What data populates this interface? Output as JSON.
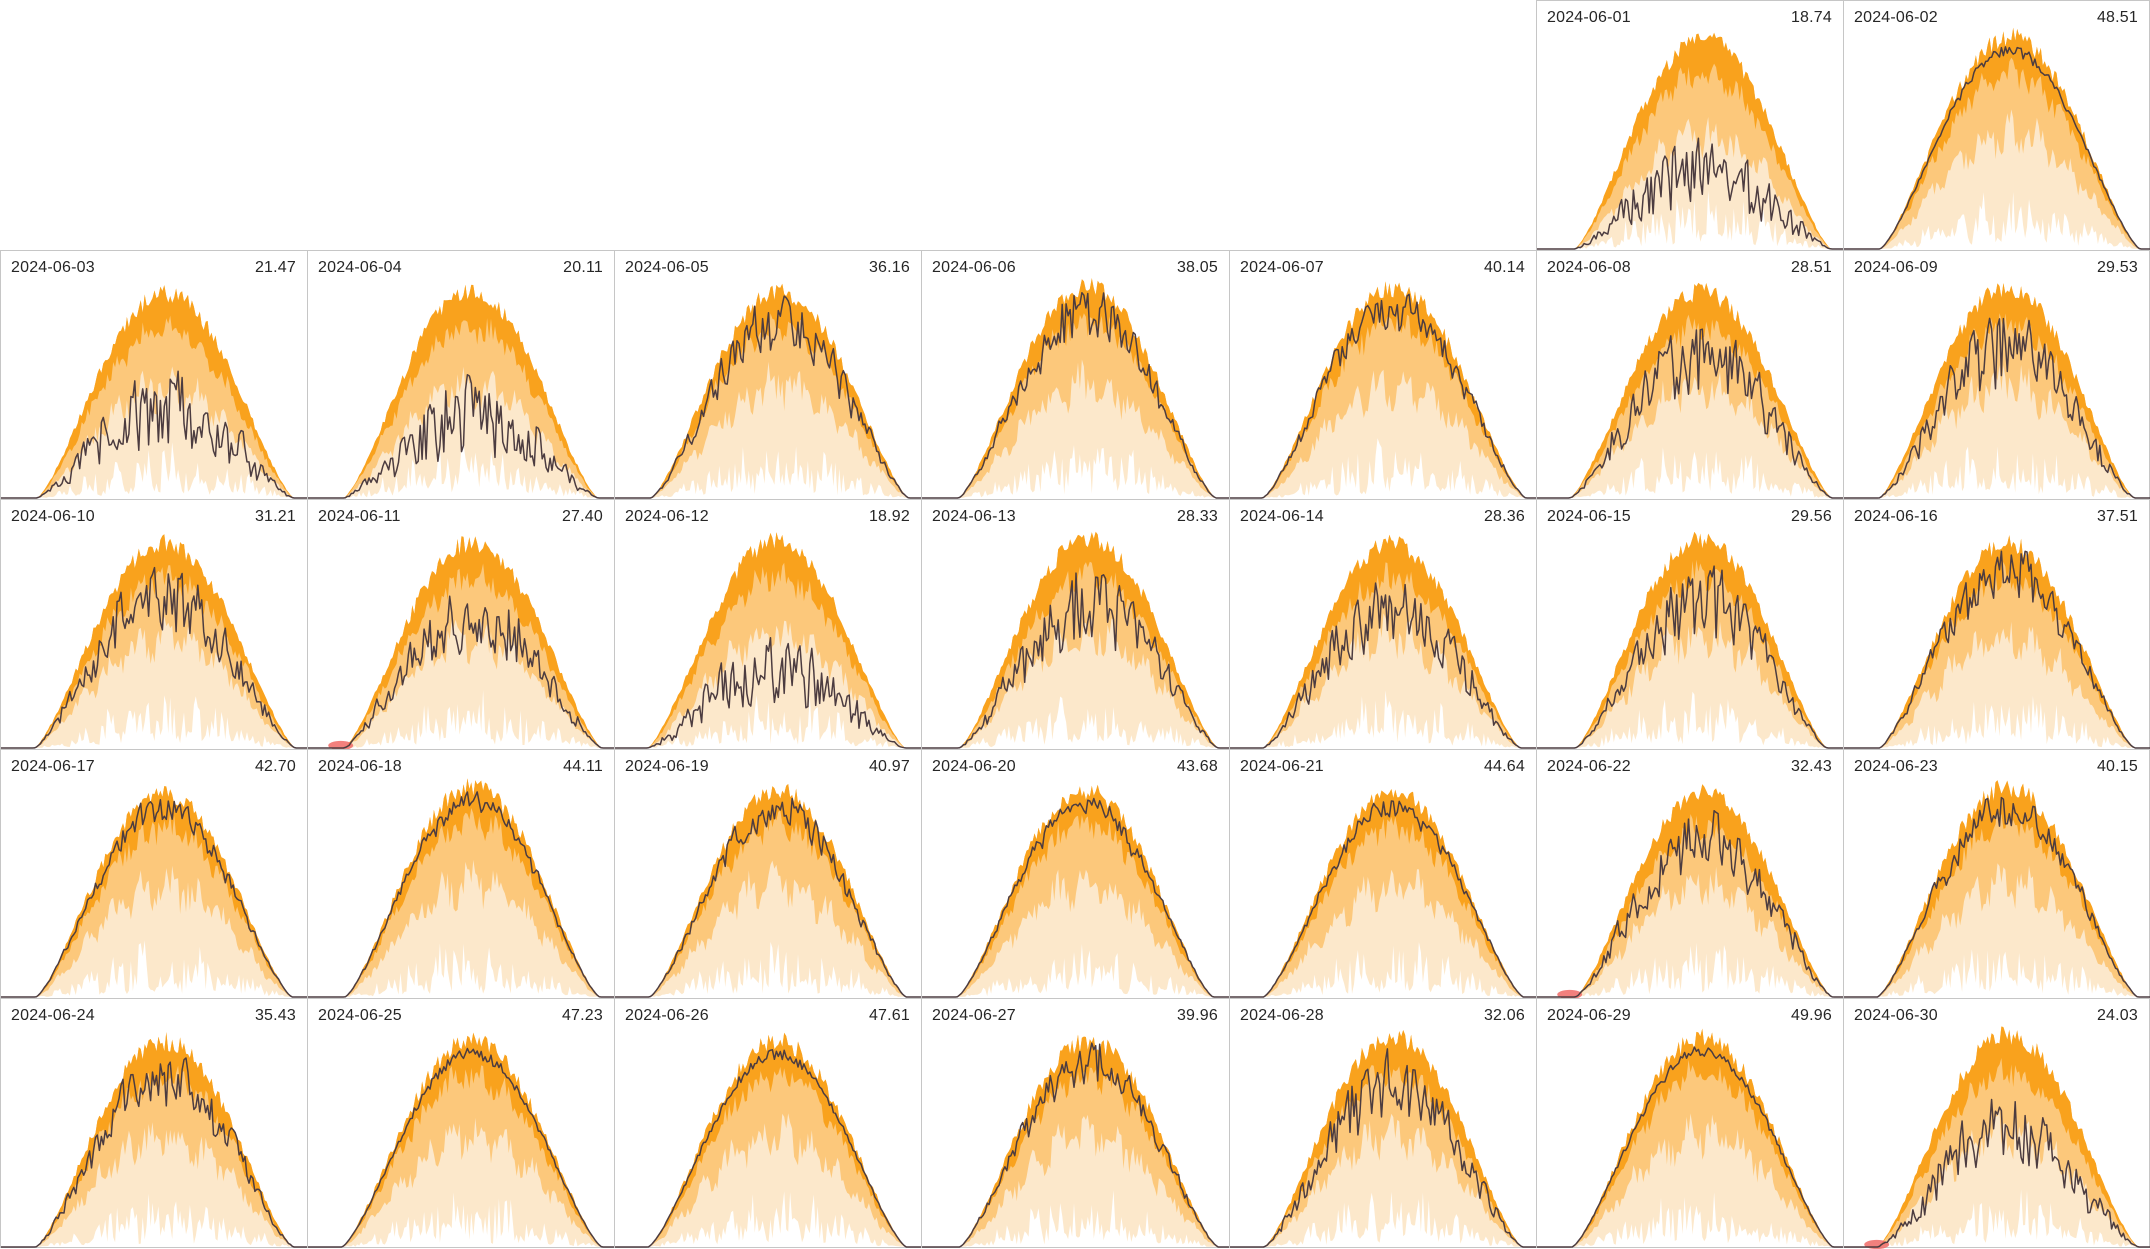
{
  "app": {
    "background_color": "#ffffff",
    "grid_border_color": "#c6c6c6",
    "text_color": "#262626"
  },
  "chart_data": {
    "type": "area",
    "description": "Calendar grid of daily small-multiple charts. Each day shows layered orange envelope bands (expected/percentile range of production over the day) with a dark line for the measured value and a numeric daily total in the header. Some days have a small red marker at the morning foot of the curve.",
    "layout": {
      "columns": 7,
      "rows": 5,
      "first_cell_column_index": 5,
      "grid_on": false,
      "legend": "none",
      "x_axis": "time of day (unlabeled)",
      "y_axis": "power (unlabeled)"
    },
    "bands": [
      {
        "name": "outer-band",
        "color": "#F9A21D"
      },
      {
        "name": "middle-band",
        "color": "#FCC87B"
      },
      {
        "name": "inner-band",
        "color": "#FCE8CB"
      }
    ],
    "line_color": "#4C3C40",
    "marker_color": "#F06A66",
    "days": [
      {
        "date": "2024-06-01",
        "value": 18.74,
        "display": "18.74",
        "marker": false
      },
      {
        "date": "2024-06-02",
        "value": 48.51,
        "display": "48.51",
        "marker": false
      },
      {
        "date": "2024-06-03",
        "value": 21.47,
        "display": "21.47",
        "marker": false
      },
      {
        "date": "2024-06-04",
        "value": 20.11,
        "display": "20.11",
        "marker": false
      },
      {
        "date": "2024-06-05",
        "value": 36.16,
        "display": "36.16",
        "marker": false
      },
      {
        "date": "2024-06-06",
        "value": 38.05,
        "display": "38.05",
        "marker": false
      },
      {
        "date": "2024-06-07",
        "value": 40.14,
        "display": "40.14",
        "marker": false
      },
      {
        "date": "2024-06-08",
        "value": 28.51,
        "display": "28.51",
        "marker": false
      },
      {
        "date": "2024-06-09",
        "value": 29.53,
        "display": "29.53",
        "marker": false
      },
      {
        "date": "2024-06-10",
        "value": 31.21,
        "display": "31.21",
        "marker": false
      },
      {
        "date": "2024-06-11",
        "value": 27.4,
        "display": "27.40",
        "marker": true
      },
      {
        "date": "2024-06-12",
        "value": 18.92,
        "display": "18.92",
        "marker": false
      },
      {
        "date": "2024-06-13",
        "value": 28.33,
        "display": "28.33",
        "marker": false
      },
      {
        "date": "2024-06-14",
        "value": 28.36,
        "display": "28.36",
        "marker": false
      },
      {
        "date": "2024-06-15",
        "value": 29.56,
        "display": "29.56",
        "marker": false
      },
      {
        "date": "2024-06-16",
        "value": 37.51,
        "display": "37.51",
        "marker": false
      },
      {
        "date": "2024-06-17",
        "value": 42.7,
        "display": "42.70",
        "marker": false
      },
      {
        "date": "2024-06-18",
        "value": 44.11,
        "display": "44.11",
        "marker": false
      },
      {
        "date": "2024-06-19",
        "value": 40.97,
        "display": "40.97",
        "marker": false
      },
      {
        "date": "2024-06-20",
        "value": 43.68,
        "display": "43.68",
        "marker": false
      },
      {
        "date": "2024-06-21",
        "value": 44.64,
        "display": "44.64",
        "marker": false
      },
      {
        "date": "2024-06-22",
        "value": 32.43,
        "display": "32.43",
        "marker": true
      },
      {
        "date": "2024-06-23",
        "value": 40.15,
        "display": "40.15",
        "marker": false
      },
      {
        "date": "2024-06-24",
        "value": 35.43,
        "display": "35.43",
        "marker": false
      },
      {
        "date": "2024-06-25",
        "value": 47.23,
        "display": "47.23",
        "marker": false
      },
      {
        "date": "2024-06-26",
        "value": 47.61,
        "display": "47.61",
        "marker": false
      },
      {
        "date": "2024-06-27",
        "value": 39.96,
        "display": "39.96",
        "marker": false
      },
      {
        "date": "2024-06-28",
        "value": 32.06,
        "display": "32.06",
        "marker": false
      },
      {
        "date": "2024-06-29",
        "value": 49.96,
        "display": "49.96",
        "marker": false
      },
      {
        "date": "2024-06-30",
        "value": 24.03,
        "display": "24.03",
        "marker": true
      }
    ]
  }
}
